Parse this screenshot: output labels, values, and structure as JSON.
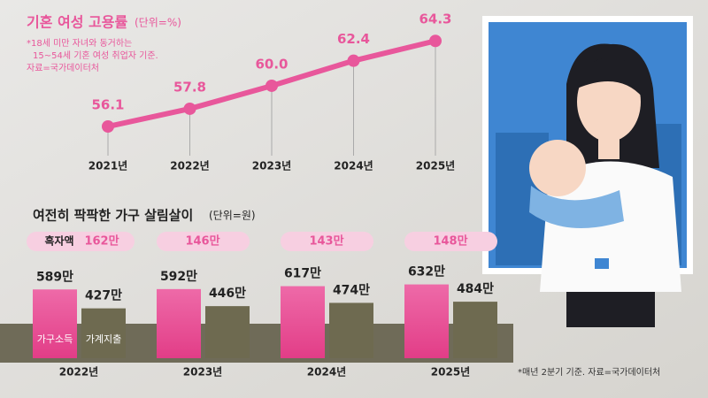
{
  "chart_data": [
    {
      "type": "line",
      "title": "기혼 여성 고용률",
      "unit": "(단위=%)",
      "note_lines": [
        "*18세 미만 자녀와 동거하는",
        "15~54세 기혼 여성 취업자 기준.",
        "자료=국가데이터처"
      ],
      "categories": [
        "2021년",
        "2022년",
        "2023년",
        "2024년",
        "2025년"
      ],
      "values": [
        56.1,
        57.8,
        60.0,
        62.4,
        64.3
      ],
      "value_labels": [
        "56.1",
        "57.8",
        "60.0",
        "62.4",
        "64.3"
      ],
      "color": "#e8579b"
    },
    {
      "type": "grouped_bar",
      "title": "여전히 팍팍한 가구 살림살이",
      "unit": "(단위=원)",
      "categories": [
        "2022년",
        "2023년",
        "2024년",
        "2025년"
      ],
      "series": [
        {
          "name": "가구소득",
          "color": "#e8579b",
          "values": [
            589,
            592,
            617,
            632
          ],
          "value_labels": [
            "589만",
            "592만",
            "617만",
            "632만"
          ]
        },
        {
          "name": "가계지출",
          "color": "#6e6a50",
          "values": [
            427,
            446,
            474,
            484
          ],
          "value_labels": [
            "427만",
            "446만",
            "474만",
            "484만"
          ]
        }
      ],
      "surplus": {
        "name": "흑자액",
        "values": [
          162,
          146,
          143,
          148
        ],
        "value_labels": [
          "162만",
          "146만",
          "143만",
          "148만"
        ]
      },
      "footnote": "*매년 2분기 기준. 자료=국가데이터처"
    }
  ]
}
